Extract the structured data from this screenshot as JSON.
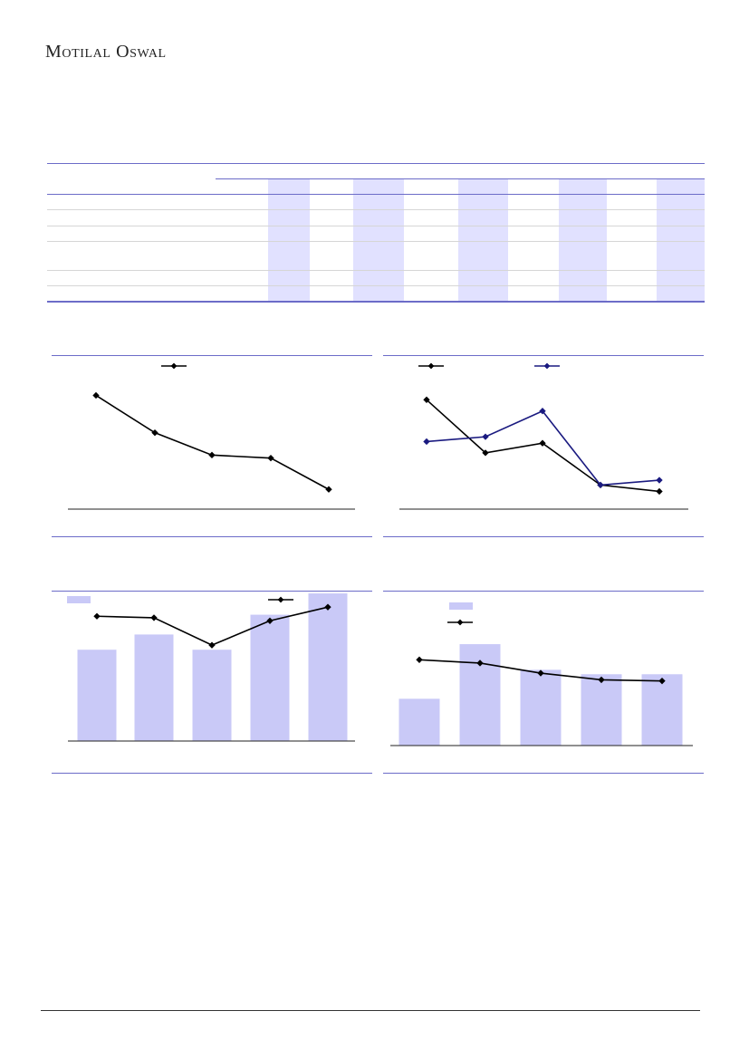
{
  "header": {
    "brand": "Motilal Oswal"
  },
  "colors": {
    "accent": "#6c6cc8",
    "shade": "#e1e1ff",
    "bar": "#c9c9f7",
    "line_dark": "#000000",
    "line_blue": "#1a1a80",
    "grid": "#d6d6d6"
  },
  "table": {
    "rows": 6,
    "highlight_columns": 5
  },
  "chart_data": [
    {
      "type": "line",
      "series": [
        {
          "values": [
            90,
            65,
            50,
            48,
            27
          ]
        }
      ],
      "ylim": [
        15,
        100
      ]
    },
    {
      "type": "line",
      "series": [
        {
          "values": [
            88,
            55,
            61,
            35,
            31
          ]
        },
        {
          "values": [
            62,
            65,
            81,
            35,
            38
          ]
        }
      ],
      "ylim": [
        20,
        100
      ]
    },
    {
      "type": "bar",
      "series": [
        {
          "values": [
            60,
            70,
            60,
            83,
            97
          ]
        },
        {
          "values": [
            82,
            81,
            63,
            79,
            88
          ]
        }
      ],
      "ylim": [
        0,
        100
      ]
    },
    {
      "type": "bar",
      "series": [
        {
          "values": [
            42,
            91,
            68,
            64,
            64
          ]
        },
        {
          "values": [
            77,
            74,
            65,
            59,
            58
          ]
        }
      ],
      "ylim": [
        0,
        100
      ]
    }
  ]
}
